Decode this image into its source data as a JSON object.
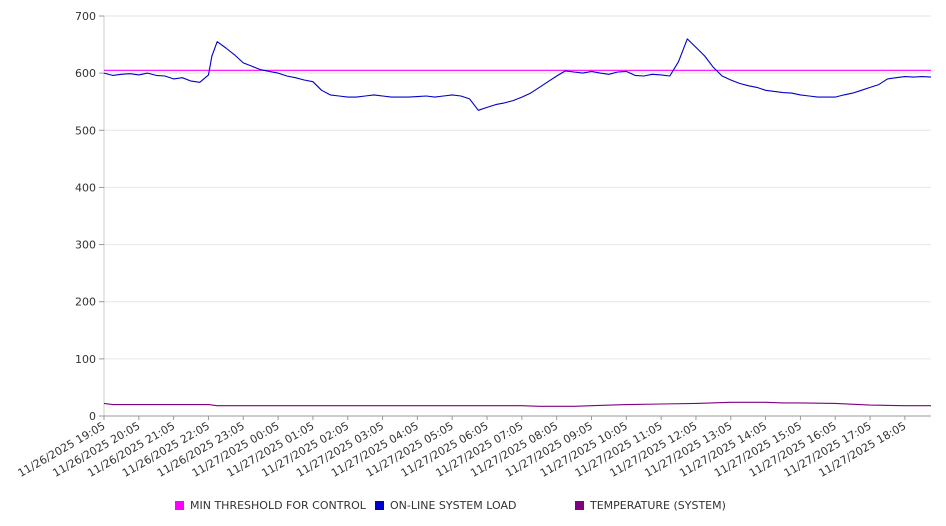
{
  "chart_data": {
    "type": "line",
    "title": "",
    "xlabel": "",
    "ylabel": "",
    "ylim": [
      0,
      700
    ],
    "yticks": [
      0,
      100,
      200,
      300,
      400,
      500,
      600,
      700
    ],
    "xticks": [
      "11/26/2025 19:05",
      "11/26/2025 20:05",
      "11/26/2025 21:05",
      "11/26/2025 22:05",
      "11/26/2025 23:05",
      "11/27/2025 00:05",
      "11/27/2025 01:05",
      "11/27/2025 02:05",
      "11/27/2025 03:05",
      "11/27/2025 04:05",
      "11/27/2025 05:05",
      "11/27/2025 06:05",
      "11/27/2025 07:05",
      "11/27/2025 08:05",
      "11/27/2025 09:05",
      "11/27/2025 10:05",
      "11/27/2025 11:05",
      "11/27/2025 12:05",
      "11/27/2025 13:05",
      "11/27/2025 14:05",
      "11/27/2025 15:05",
      "11/27/2025 16:05",
      "11/27/2025 17:05",
      "11/27/2025 18:05"
    ],
    "xrange_hours": [
      0,
      23.75
    ],
    "grid": true,
    "legend_position": "bottom",
    "series": [
      {
        "name": "MIN THRESHOLD FOR CONTROL",
        "color": "#ff00ff",
        "x": [
          0,
          23.75
        ],
        "values": [
          605,
          605
        ]
      },
      {
        "name": "ON-LINE SYSTEM LOAD",
        "color": "#0000cc",
        "x": [
          0,
          0.25,
          0.5,
          0.75,
          1.0,
          1.25,
          1.5,
          1.75,
          2.0,
          2.25,
          2.5,
          2.75,
          3.0,
          3.1,
          3.25,
          3.5,
          3.75,
          4.0,
          4.25,
          4.5,
          4.75,
          5.0,
          5.25,
          5.5,
          5.75,
          6.0,
          6.25,
          6.5,
          6.75,
          7.0,
          7.25,
          7.5,
          7.75,
          8.0,
          8.25,
          8.5,
          8.75,
          9.0,
          9.25,
          9.5,
          9.75,
          10.0,
          10.25,
          10.5,
          10.75,
          11.0,
          11.25,
          11.5,
          11.75,
          12.0,
          12.25,
          12.5,
          12.75,
          13.0,
          13.25,
          13.5,
          13.75,
          14.0,
          14.25,
          14.5,
          14.75,
          15.0,
          15.25,
          15.5,
          15.75,
          16.0,
          16.25,
          16.5,
          16.75,
          17.0,
          17.25,
          17.5,
          17.75,
          18.0,
          18.25,
          18.5,
          18.75,
          19.0,
          19.25,
          19.5,
          19.75,
          20.0,
          20.25,
          20.5,
          20.75,
          21.0,
          21.25,
          21.5,
          21.75,
          22.0,
          22.25,
          22.5,
          22.75,
          23.0,
          23.25,
          23.5,
          23.75
        ],
        "values": [
          600,
          596,
          598,
          599,
          597,
          600,
          596,
          595,
          590,
          592,
          586,
          584,
          597,
          630,
          655,
          644,
          632,
          618,
          612,
          606,
          603,
          600,
          595,
          592,
          588,
          585,
          570,
          562,
          560,
          558,
          558,
          560,
          562,
          560,
          558,
          558,
          558,
          559,
          560,
          558,
          560,
          562,
          560,
          555,
          535,
          540,
          545,
          548,
          552,
          558,
          565,
          575,
          585,
          595,
          604,
          602,
          600,
          603,
          600,
          598,
          602,
          603,
          596,
          595,
          598,
          597,
          595,
          620,
          660,
          645,
          630,
          610,
          595,
          588,
          582,
          578,
          575,
          570,
          568,
          566,
          565,
          562,
          560,
          558,
          558,
          558,
          562,
          565,
          570,
          575,
          580,
          590,
          592,
          594,
          593,
          594,
          593
        ]
      },
      {
        "name": "TEMPERATURE (SYSTEM)",
        "color": "#800080",
        "x": [
          0,
          0.25,
          1.0,
          2.0,
          3.0,
          3.25,
          4.0,
          6.0,
          8.0,
          10.0,
          12.0,
          12.5,
          13.0,
          13.5,
          14.0,
          15.0,
          16.0,
          17.0,
          18.0,
          19.0,
          19.5,
          20.0,
          21.0,
          22.0,
          23.0,
          23.75
        ],
        "values": [
          22,
          20,
          20,
          20,
          20,
          18,
          18,
          18,
          18,
          18,
          18,
          17,
          17,
          17,
          18,
          20,
          21,
          22,
          24,
          24,
          23,
          23,
          22,
          19,
          18,
          18
        ]
      }
    ]
  }
}
